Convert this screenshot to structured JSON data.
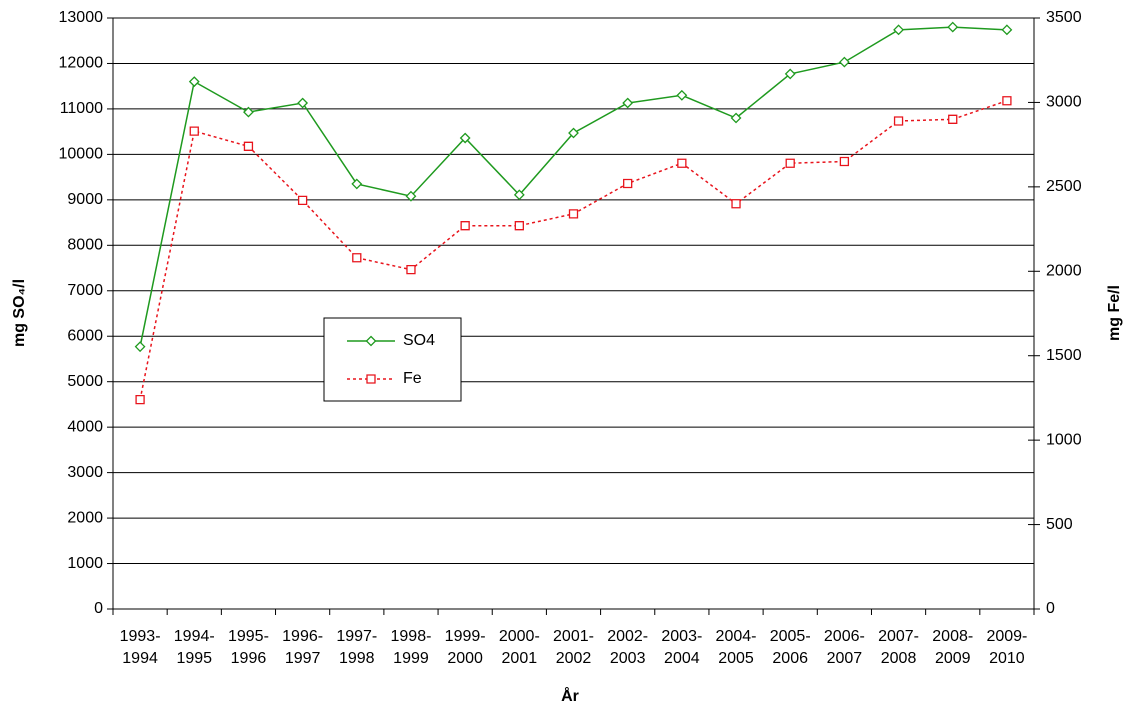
{
  "chart_data": {
    "type": "line",
    "categories": [
      "1993-1994",
      "1994-1995",
      "1995-1996",
      "1996-1997",
      "1997-1998",
      "1998-1999",
      "1999-2000",
      "2000-2001",
      "2001-2002",
      "2002-2003",
      "2003-2004",
      "2004-2005",
      "2005-2006",
      "2006-2007",
      "2007-2008",
      "2008-2009",
      "2009-2010"
    ],
    "series": [
      {
        "name": "SO4",
        "color": "#1f9a1f",
        "marker": "diamond",
        "line_style": "solid",
        "values": [
          5770,
          11600,
          10930,
          11130,
          9350,
          9080,
          10360,
          9110,
          10470,
          11130,
          11300,
          10800,
          11770,
          12030,
          12740,
          12800,
          12740
        ]
      },
      {
        "name": "Fe",
        "color": "#e8141c",
        "marker": "square",
        "line_style": "dotted",
        "axis": "y2",
        "values": [
          1240,
          2830,
          2740,
          2420,
          2080,
          2010,
          2270,
          2270,
          2340,
          2520,
          2640,
          2400,
          2640,
          2650,
          2890,
          2900,
          3010
        ]
      }
    ],
    "x_label": "År",
    "y_label": "mg SO₄/l",
    "y2_label": "mg Fe/l",
    "ylim": [
      0,
      13000
    ],
    "yticks": [
      0,
      1000,
      2000,
      3000,
      4000,
      5000,
      6000,
      7000,
      8000,
      9000,
      10000,
      11000,
      12000,
      13000
    ],
    "y2lim": [
      0,
      3500
    ],
    "y2ticks": [
      0,
      500,
      1000,
      1500,
      2000,
      2500,
      3000,
      3500
    ],
    "grid": true
  }
}
